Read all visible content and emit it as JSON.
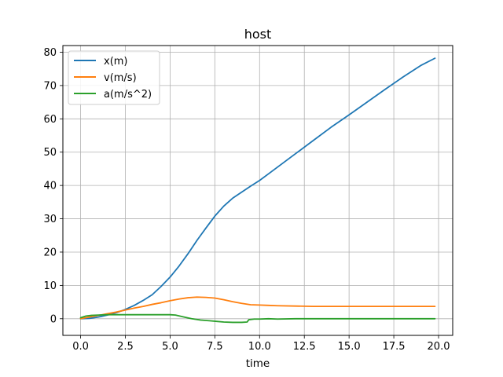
{
  "chart_data": {
    "type": "line",
    "title": "host",
    "xlabel": "time",
    "ylabel": "",
    "xlim": [
      -0.99,
      20.79
    ],
    "ylim": [
      -5,
      82
    ],
    "xticks": [
      0.0,
      2.5,
      5.0,
      7.5,
      10.0,
      12.5,
      15.0,
      17.5,
      20.0
    ],
    "xtick_labels": [
      "0.0",
      "2.5",
      "5.0",
      "7.5",
      "10.0",
      "12.5",
      "15.0",
      "17.5",
      "20.0"
    ],
    "yticks": [
      0,
      10,
      20,
      30,
      40,
      50,
      60,
      70,
      80
    ],
    "ytick_labels": [
      "0",
      "10",
      "20",
      "30",
      "40",
      "50",
      "60",
      "70",
      "80"
    ],
    "grid": true,
    "legend_position": "top-left",
    "series": [
      {
        "name": "x(m)",
        "color": "#1f77b4",
        "points": [
          [
            0,
            0.0
          ],
          [
            0.5,
            0.1
          ],
          [
            1.0,
            0.5
          ],
          [
            1.5,
            1.1
          ],
          [
            2.0,
            1.8
          ],
          [
            2.5,
            2.8
          ],
          [
            3.0,
            4.0
          ],
          [
            3.5,
            5.5
          ],
          [
            4.0,
            7.2
          ],
          [
            4.5,
            9.7
          ],
          [
            5.0,
            12.5
          ],
          [
            5.5,
            15.8
          ],
          [
            6.0,
            19.5
          ],
          [
            6.5,
            23.5
          ],
          [
            7.0,
            27.2
          ],
          [
            7.5,
            30.8
          ],
          [
            8.0,
            33.8
          ],
          [
            8.5,
            36.2
          ],
          [
            9.0,
            38.0
          ],
          [
            9.5,
            39.8
          ],
          [
            10.0,
            41.5
          ],
          [
            10.5,
            43.5
          ],
          [
            11.0,
            45.5
          ],
          [
            12.0,
            49.5
          ],
          [
            13.0,
            53.5
          ],
          [
            14.0,
            57.5
          ],
          [
            15.0,
            61.2
          ],
          [
            16.0,
            65.0
          ],
          [
            17.0,
            68.8
          ],
          [
            18.0,
            72.5
          ],
          [
            19.0,
            76.0
          ],
          [
            19.8,
            78.2
          ]
        ]
      },
      {
        "name": "v(m/s)",
        "color": "#ff7f0e",
        "points": [
          [
            0,
            0.0
          ],
          [
            0.5,
            0.5
          ],
          [
            1.0,
            1.0
          ],
          [
            1.5,
            1.5
          ],
          [
            2.0,
            2.0
          ],
          [
            2.5,
            2.6
          ],
          [
            3.0,
            3.2
          ],
          [
            3.5,
            3.7
          ],
          [
            4.0,
            4.3
          ],
          [
            4.5,
            4.8
          ],
          [
            5.0,
            5.4
          ],
          [
            5.5,
            5.9
          ],
          [
            6.0,
            6.3
          ],
          [
            6.5,
            6.5
          ],
          [
            7.0,
            6.4
          ],
          [
            7.5,
            6.2
          ],
          [
            8.0,
            5.7
          ],
          [
            8.5,
            5.1
          ],
          [
            9.0,
            4.6
          ],
          [
            9.5,
            4.2
          ],
          [
            10.0,
            4.1
          ],
          [
            10.5,
            4.0
          ],
          [
            11.0,
            3.9
          ],
          [
            12.0,
            3.8
          ],
          [
            13.0,
            3.7
          ],
          [
            14.0,
            3.7
          ],
          [
            15.0,
            3.7
          ],
          [
            16.0,
            3.7
          ],
          [
            17.0,
            3.7
          ],
          [
            18.0,
            3.7
          ],
          [
            19.0,
            3.7
          ],
          [
            19.8,
            3.7
          ]
        ]
      },
      {
        "name": "a(m/s^2)",
        "color": "#2ca02c",
        "points": [
          [
            0,
            0.3
          ],
          [
            0.3,
            0.8
          ],
          [
            0.6,
            1.0
          ],
          [
            1.0,
            1.1
          ],
          [
            1.5,
            1.2
          ],
          [
            2.0,
            1.2
          ],
          [
            3.0,
            1.2
          ],
          [
            4.0,
            1.2
          ],
          [
            5.0,
            1.2
          ],
          [
            5.3,
            1.1
          ],
          [
            5.7,
            0.6
          ],
          [
            6.2,
            0.0
          ],
          [
            6.7,
            -0.4
          ],
          [
            7.2,
            -0.6
          ],
          [
            7.6,
            -0.8
          ],
          [
            8.0,
            -1.0
          ],
          [
            8.5,
            -1.1
          ],
          [
            9.0,
            -1.1
          ],
          [
            9.3,
            -1.0
          ],
          [
            9.4,
            -0.3
          ],
          [
            9.7,
            -0.1
          ],
          [
            10.0,
            -0.1
          ],
          [
            10.5,
            0.0
          ],
          [
            11.0,
            -0.1
          ],
          [
            12.0,
            0.0
          ],
          [
            13.0,
            0.0
          ],
          [
            14.0,
            0.0
          ],
          [
            15.0,
            0.0
          ],
          [
            16.0,
            0.0
          ],
          [
            17.0,
            0.0
          ],
          [
            18.0,
            0.0
          ],
          [
            19.0,
            0.0
          ],
          [
            19.8,
            0.0
          ]
        ]
      }
    ]
  }
}
